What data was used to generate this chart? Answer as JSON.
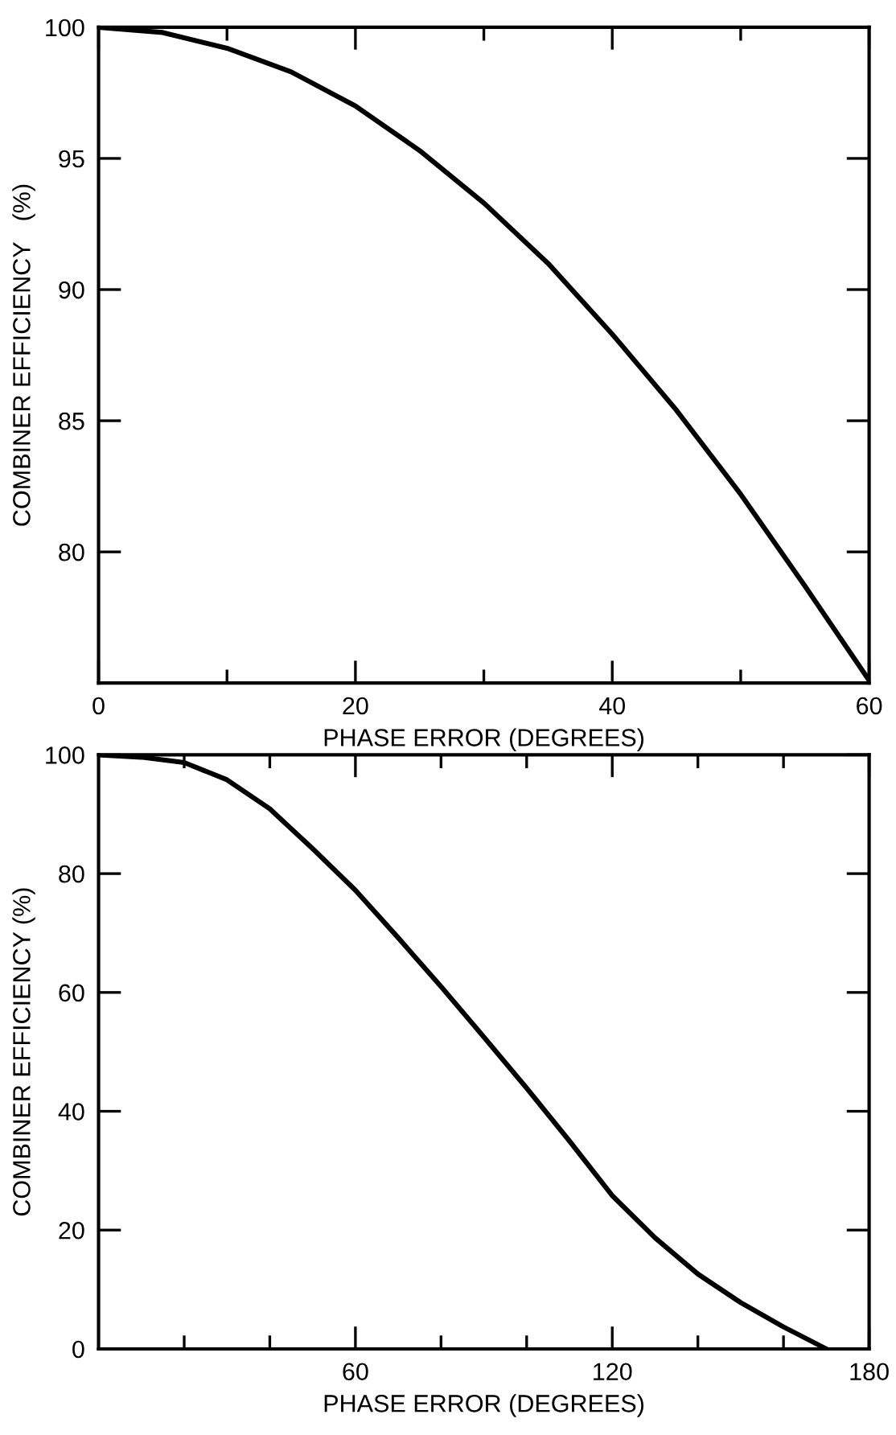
{
  "chart_data": [
    {
      "type": "line",
      "xlabel": "PHASE ERROR (DEGREES)",
      "ylabel": "COMBINER EFFICIENCY   (%)",
      "x": [
        0,
        5,
        10,
        15,
        20,
        25,
        30,
        35,
        40,
        45,
        50,
        55,
        60
      ],
      "series": [
        {
          "color": "#000000",
          "values": [
            100,
            99.8,
            99.2,
            98.3,
            97.0,
            95.3,
            93.3,
            91.0,
            88.3,
            85.4,
            82.2,
            78.7,
            75.1
          ]
        }
      ],
      "xlim": [
        0,
        60
      ],
      "xticks": [
        0,
        {
          "value": 10,
          "label": null
        },
        20,
        {
          "value": 30,
          "label": null
        },
        40,
        {
          "value": 50,
          "label": null
        },
        60
      ],
      "ylim": [
        75,
        100
      ],
      "yticks": [
        80,
        85,
        90,
        95,
        100
      ],
      "grid": false,
      "legend": false,
      "marker": "none",
      "line_style": "solid"
    },
    {
      "type": "line",
      "xlabel": "PHASE ERROR (DEGREES)",
      "ylabel": "COMBINER EFFICIENCY (%)",
      "x": [
        0,
        10,
        20,
        30,
        40,
        50,
        60,
        70,
        80,
        90,
        100,
        110,
        120,
        130,
        140,
        150,
        160,
        170
      ],
      "series": [
        {
          "color": "#000000",
          "values": [
            100,
            99.6,
            98.7,
            95.8,
            90.9,
            84.2,
            77.2,
            69.2,
            61.0,
            52.5,
            43.9,
            35.0,
            25.8,
            18.7,
            12.6,
            7.8,
            3.7,
            0
          ]
        }
      ],
      "xlim": [
        0,
        180
      ],
      "xticks": [
        {
          "value": 20,
          "label": null
        },
        {
          "value": 40,
          "label": null
        },
        60,
        {
          "value": 80,
          "label": null
        },
        {
          "value": 100,
          "label": null
        },
        120,
        {
          "value": 140,
          "label": null
        },
        {
          "value": 160,
          "label": null
        },
        180
      ],
      "ylim": [
        0,
        100
      ],
      "yticks": [
        0,
        20,
        40,
        60,
        80,
        100
      ],
      "grid": false,
      "legend": false,
      "marker": "none",
      "line_style": "solid"
    }
  ]
}
